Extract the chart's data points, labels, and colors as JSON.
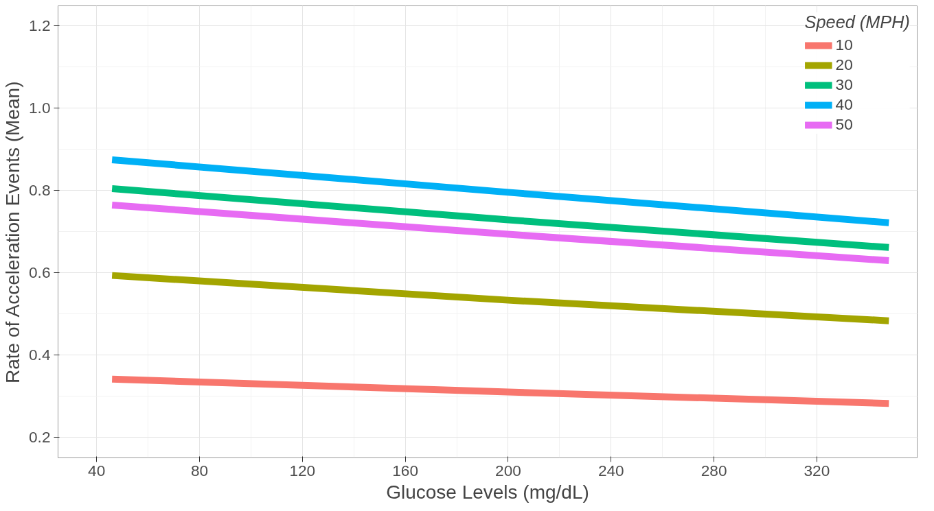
{
  "chart_data": {
    "type": "line",
    "xlabel": "Glucose Levels (mg/dL)",
    "ylabel": "Rate of Acceleration Events (Mean)",
    "legend_title": "Speed (MPH)",
    "x": [
      46,
      200,
      348
    ],
    "series": [
      {
        "name": "10",
        "color": "#f8766d",
        "values": [
          0.341,
          0.31,
          0.282
        ]
      },
      {
        "name": "20",
        "color": "#a3a500",
        "values": [
          0.593,
          0.533,
          0.483
        ]
      },
      {
        "name": "30",
        "color": "#00bf7d",
        "values": [
          0.804,
          0.728,
          0.661
        ]
      },
      {
        "name": "40",
        "color": "#00b0f6",
        "values": [
          0.874,
          0.795,
          0.721
        ]
      },
      {
        "name": "50",
        "color": "#e76bf3",
        "values": [
          0.764,
          0.693,
          0.629
        ]
      }
    ],
    "xlim": [
      25,
      359
    ],
    "ylim": [
      0.15,
      1.248
    ],
    "xticks": [
      40,
      80,
      120,
      160,
      200,
      240,
      280,
      320
    ],
    "yticks": [
      {
        "value": 0.2,
        "label": "0.2"
      },
      {
        "value": 0.4,
        "label": "0.4"
      },
      {
        "value": 0.6,
        "label": "0.6"
      },
      {
        "value": 0.8,
        "label": "0.8"
      },
      {
        "value": 1.0,
        "label": "1.0"
      },
      {
        "value": 1.2,
        "label": "1.2"
      }
    ],
    "grid": true,
    "legend": "top right",
    "line_style": "solid"
  }
}
